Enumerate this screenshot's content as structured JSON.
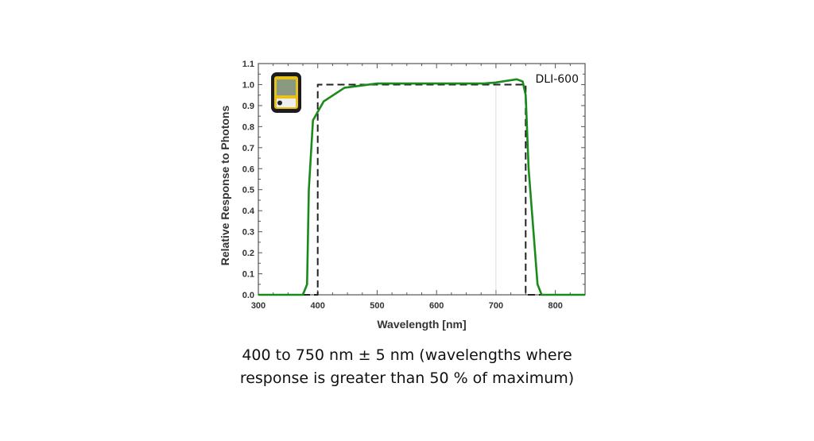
{
  "chart_data": {
    "type": "line",
    "xlabel": "Wavelength [nm]",
    "ylabel": "Relative Response to Photons",
    "xlim": [
      300,
      850
    ],
    "ylim": [
      0,
      1.1
    ],
    "xticks": [
      300,
      400,
      500,
      600,
      700,
      800
    ],
    "yticks": [
      "0.0",
      "0.1",
      "0.2",
      "0.3",
      "0.4",
      "0.5",
      "0.6",
      "0.7",
      "0.8",
      "0.9",
      "1.0",
      "1.1"
    ],
    "grid": false,
    "annotation": "DLI-600",
    "series": [
      {
        "style": "solid",
        "color": "#1a8a1a",
        "x": [
          300,
          375,
          382,
          385,
          392,
          410,
          445,
          500,
          600,
          680,
          700,
          735,
          745,
          750,
          755,
          770,
          777,
          850
        ],
        "y": [
          0,
          0,
          0.05,
          0.5,
          0.83,
          0.92,
          0.985,
          1.005,
          1.005,
          1.005,
          1.01,
          1.025,
          1.015,
          0.95,
          0.6,
          0.05,
          0,
          0
        ]
      },
      {
        "style": "dashed",
        "color": "#222222",
        "x": [
          300,
          400,
          400,
          750,
          750,
          850
        ],
        "y": [
          0,
          0,
          1.0,
          1.0,
          0,
          0
        ]
      }
    ],
    "reference_line_x": 700
  },
  "caption": {
    "line1": "400 to 750 nm ± 5 nm (wavelengths where",
    "line2": "response is greater than 50 % of maximum)"
  },
  "device_icon": "light-meter-device-icon"
}
